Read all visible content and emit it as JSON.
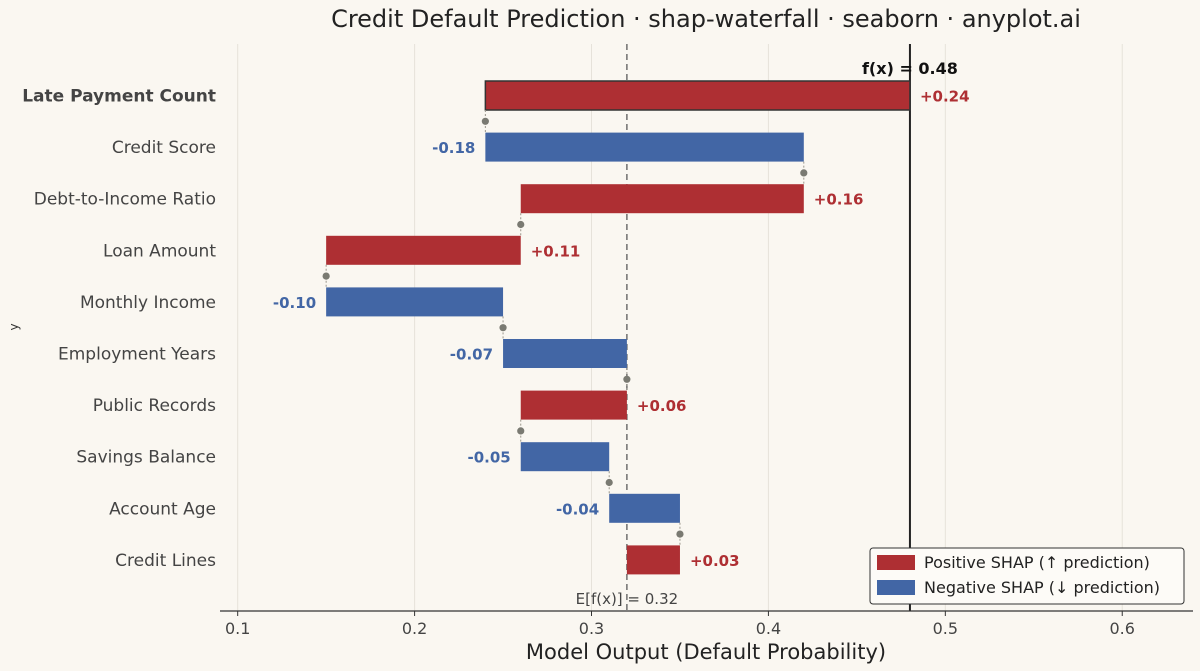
{
  "chart_data": {
    "type": "bar",
    "subtype": "waterfall",
    "title": "Credit Default Prediction · shap-waterfall · seaborn · anyplot.ai",
    "xlabel": "Model Output  (Default Probability)",
    "ylabel": "y",
    "xlim": [
      0.09,
      0.64
    ],
    "xticks": [
      0.1,
      0.2,
      0.3,
      0.4,
      0.5,
      0.6
    ],
    "xtick_labels": [
      "0.1",
      "0.2",
      "0.3",
      "0.4",
      "0.5",
      "0.6"
    ],
    "grid": "x",
    "base_value": 0.32,
    "base_label": "E[f(x)] = 0.32",
    "final_value": 0.48,
    "final_label": "f(x) = 0.48",
    "categories": [
      "Late Payment Count",
      "Credit Score",
      "Debt-to-Income Ratio",
      "Loan Amount",
      "Monthly Income",
      "Employment Years",
      "Public Records",
      "Savings Balance",
      "Account Age",
      "Credit Lines"
    ],
    "bars": [
      {
        "feature": "Late Payment Count",
        "start": 0.24,
        "end": 0.48,
        "value_label": "+0.24",
        "sign": "positive",
        "highlight": true
      },
      {
        "feature": "Credit Score",
        "start": 0.42,
        "end": 0.24,
        "value_label": "-0.18",
        "sign": "negative"
      },
      {
        "feature": "Debt-to-Income Ratio",
        "start": 0.26,
        "end": 0.42,
        "value_label": "+0.16",
        "sign": "positive"
      },
      {
        "feature": "Loan Amount",
        "start": 0.15,
        "end": 0.26,
        "value_label": "+0.11",
        "sign": "positive"
      },
      {
        "feature": "Monthly Income",
        "start": 0.25,
        "end": 0.15,
        "value_label": "-0.10",
        "sign": "negative"
      },
      {
        "feature": "Employment Years",
        "start": 0.32,
        "end": 0.25,
        "value_label": "-0.07",
        "sign": "negative"
      },
      {
        "feature": "Public Records",
        "start": 0.26,
        "end": 0.32,
        "value_label": "+0.06",
        "sign": "positive"
      },
      {
        "feature": "Savings Balance",
        "start": 0.31,
        "end": 0.26,
        "value_label": "-0.05",
        "sign": "negative"
      },
      {
        "feature": "Account Age",
        "start": 0.35,
        "end": 0.31,
        "value_label": "-0.04",
        "sign": "negative"
      },
      {
        "feature": "Credit Lines",
        "start": 0.32,
        "end": 0.35,
        "value_label": "+0.03",
        "sign": "positive"
      }
    ],
    "legend": {
      "position": "lower-right",
      "entries": [
        {
          "label": "Positive SHAP  (↑ prediction)",
          "color": "#ae2f33"
        },
        {
          "label": "Negative SHAP  (↓ prediction)",
          "color": "#4266a5"
        }
      ]
    },
    "colors": {
      "positive": "#ae2f33",
      "negative": "#4266a5",
      "background": "#faf7f1",
      "text": "#444444",
      "connector": "#7a7a72"
    }
  }
}
